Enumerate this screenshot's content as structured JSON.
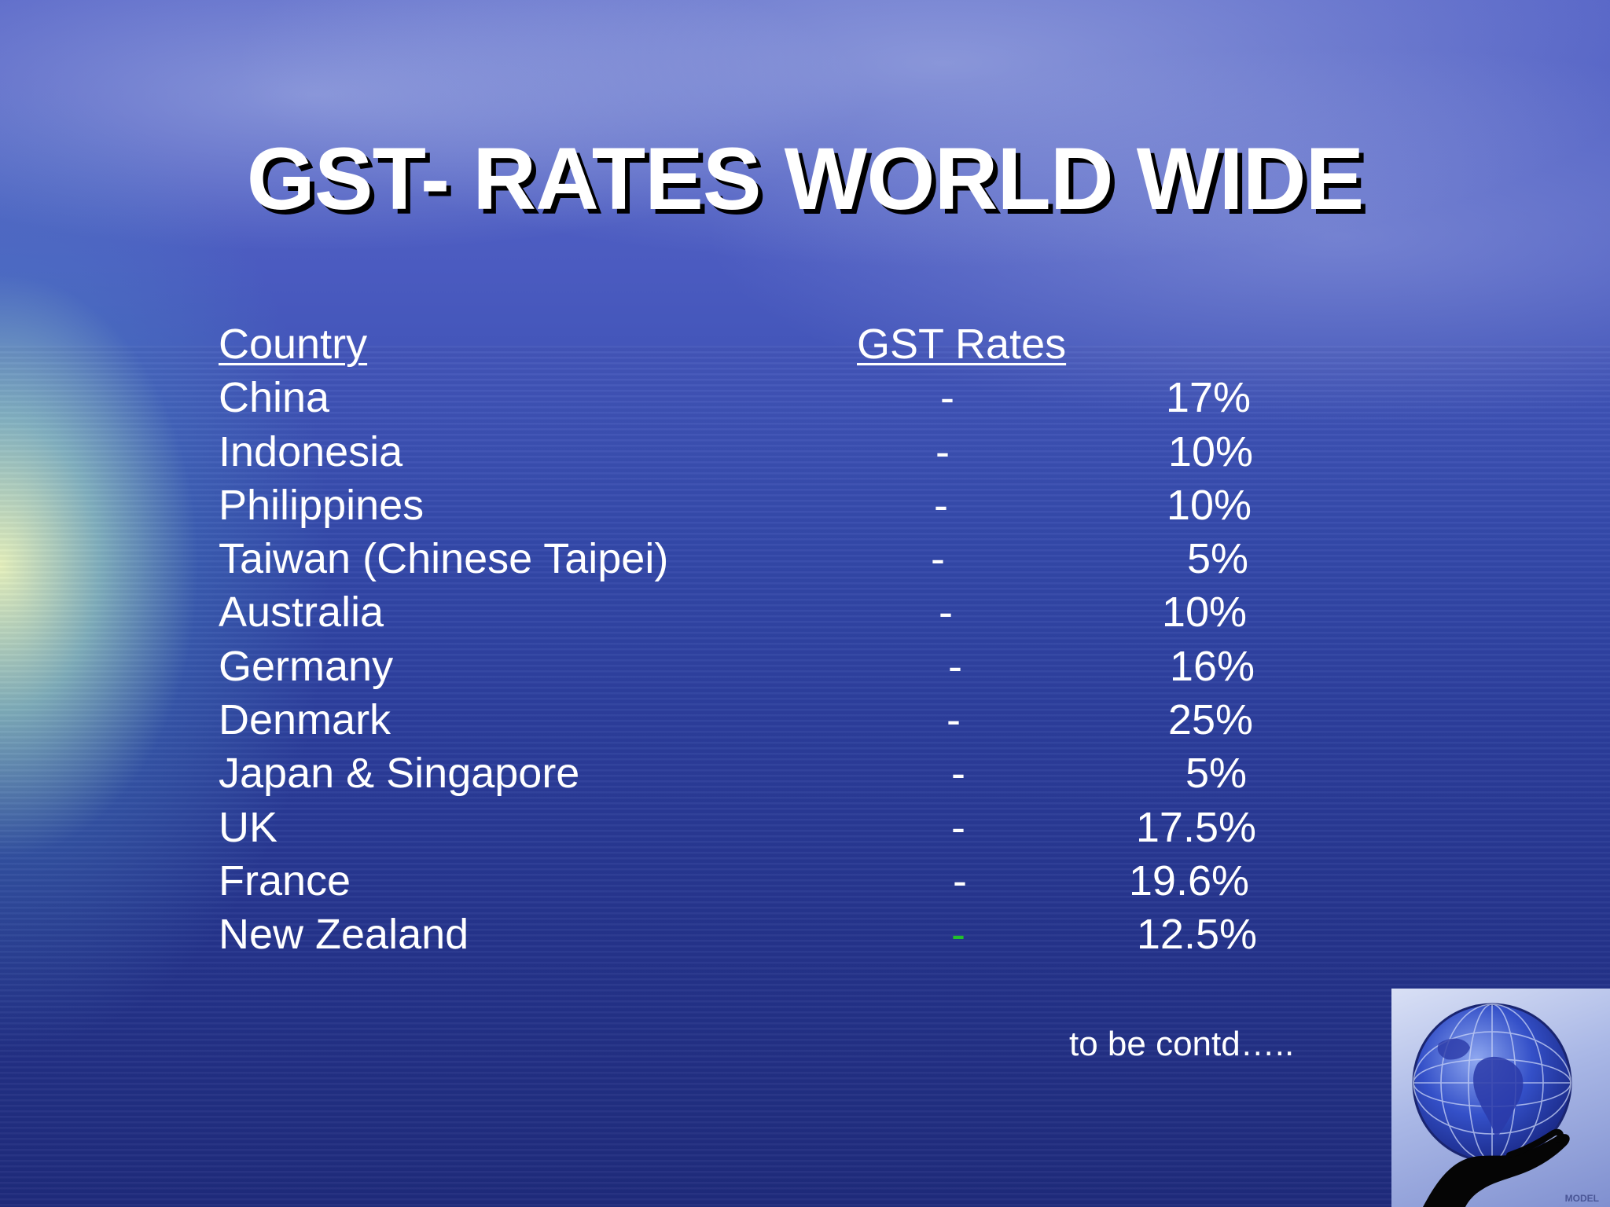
{
  "title": "GST- RATES WORLD WIDE",
  "table": {
    "header": {
      "country": "Country ",
      "rate": "GST Rates"
    },
    "rows": [
      {
        "country": "China",
        "dash": "-",
        "rate": "17%"
      },
      {
        "country": "Indonesia",
        "dash": "-",
        "rate": "10%"
      },
      {
        "country": "Philippines",
        "dash": "-",
        "rate": "10%"
      },
      {
        "country": "Taiwan (Chinese Taipei)",
        "dash": "-",
        "rate": "5%"
      },
      {
        "country": "Australia",
        "dash": "-",
        "rate": "10%"
      },
      {
        "country": "Germany",
        "dash": "-",
        "rate": "16%"
      },
      {
        "country": "Denmark",
        "dash": "-",
        "rate": "25%"
      },
      {
        "country": "Japan & Singapore",
        "dash": "-",
        "rate": "5%"
      },
      {
        "country": "UK",
        "dash": "-",
        "rate": "17.5%"
      },
      {
        "country": "France",
        "dash": "-",
        "rate": "19.6%"
      },
      {
        "country": "New Zealand",
        "dash": "-",
        "rate": "12.5%",
        "dash_color": "#22c02a"
      }
    ]
  },
  "footer": {
    "continued": "to be contd….."
  },
  "logo": {
    "icon": "globe-in-hand-icon",
    "text": "MODEL"
  },
  "colors": {
    "text": "#ffffff",
    "title_shadow": "#000000",
    "accent_dash": "#22c02a"
  }
}
